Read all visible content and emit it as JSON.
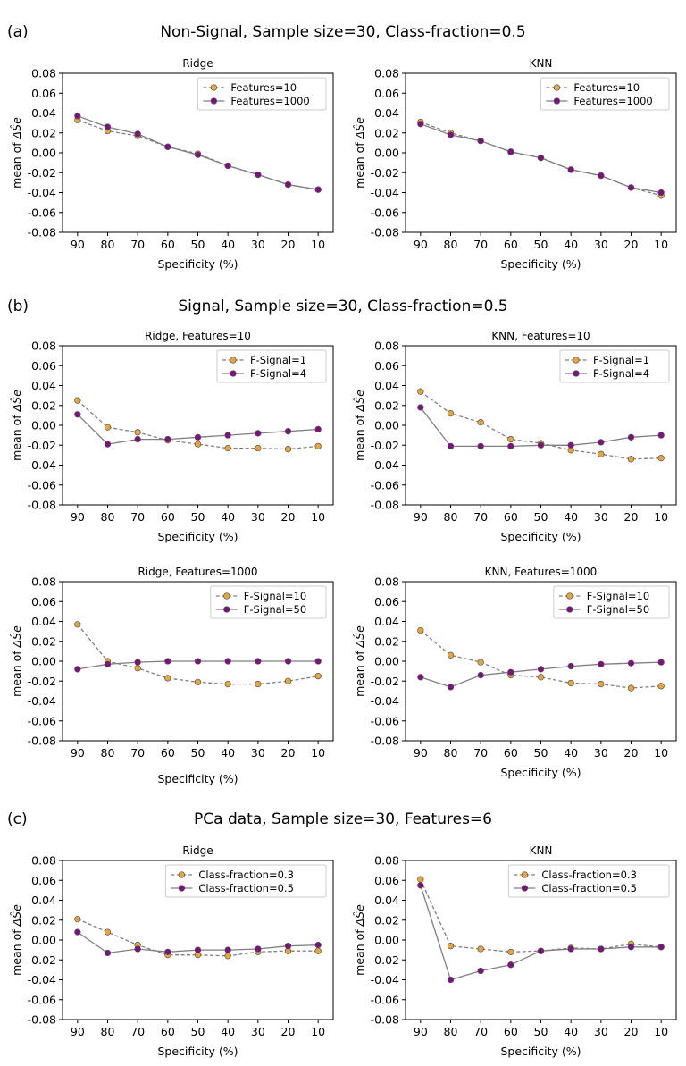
{
  "colors": {
    "series_a": "#e8a53a",
    "series_b": "#800f80",
    "line": "#7f7f7f",
    "frame": "#000000"
  },
  "sections": [
    {
      "label": "(a)",
      "title": "Non-Signal, Sample size=30, Class-fraction=0.5"
    },
    {
      "label": "(b)",
      "title": "Signal, Sample size=30, Class-fraction=0.5"
    },
    {
      "label": "(c)",
      "title": "PCa data, Sample size=30, Features=6"
    }
  ],
  "axes": {
    "xlabel": "Specificity (%)",
    "ylabel_prefix": "mean of ",
    "ylabel_math": "ΔŜe",
    "categories": [
      "90",
      "80",
      "70",
      "60",
      "50",
      "40",
      "30",
      "20",
      "10"
    ],
    "yticks": [
      "0.08",
      "0.06",
      "0.04",
      "0.02",
      "0.00",
      "-0.02",
      "-0.04",
      "-0.06",
      "-0.08"
    ],
    "ylim": [
      -0.08,
      0.08
    ]
  },
  "chart_data": [
    {
      "type": "line",
      "title": "Ridge",
      "xlabel": "Specificity (%)",
      "ylabel": "mean of ΔSe",
      "categories": [
        "90",
        "80",
        "70",
        "60",
        "50",
        "40",
        "30",
        "20",
        "10"
      ],
      "ylim": [
        -0.08,
        0.08
      ],
      "series": [
        {
          "name": "Features=10",
          "style": "dashed",
          "values": [
            0.033,
            0.022,
            0.017,
            0.006,
            -0.001,
            -0.013,
            -0.022,
            -0.032,
            -0.037
          ]
        },
        {
          "name": "Features=1000",
          "style": "solid",
          "values": [
            0.037,
            0.026,
            0.019,
            0.006,
            -0.002,
            -0.013,
            -0.022,
            -0.032,
            -0.037
          ]
        }
      ]
    },
    {
      "type": "line",
      "title": "KNN",
      "xlabel": "Specificity (%)",
      "ylabel": "mean of ΔSe",
      "categories": [
        "90",
        "80",
        "70",
        "60",
        "50",
        "40",
        "30",
        "20",
        "10"
      ],
      "ylim": [
        -0.08,
        0.08
      ],
      "series": [
        {
          "name": "Features=10",
          "style": "dashed",
          "values": [
            0.031,
            0.02,
            0.012,
            0.001,
            -0.005,
            -0.017,
            -0.023,
            -0.035,
            -0.043
          ]
        },
        {
          "name": "Features=1000",
          "style": "solid",
          "values": [
            0.029,
            0.018,
            0.012,
            0.001,
            -0.005,
            -0.017,
            -0.023,
            -0.035,
            -0.04
          ]
        }
      ]
    },
    {
      "type": "line",
      "title": "Ridge, Features=10",
      "xlabel": "Specificity (%)",
      "ylabel": "mean of ΔSe",
      "categories": [
        "90",
        "80",
        "70",
        "60",
        "50",
        "40",
        "30",
        "20",
        "10"
      ],
      "ylim": [
        -0.08,
        0.08
      ],
      "series": [
        {
          "name": "F-Signal=1",
          "style": "dashed",
          "values": [
            0.025,
            -0.002,
            -0.007,
            -0.015,
            -0.019,
            -0.023,
            -0.023,
            -0.024,
            -0.021
          ]
        },
        {
          "name": "F-Signal=4",
          "style": "solid",
          "values": [
            0.011,
            -0.019,
            -0.014,
            -0.014,
            -0.012,
            -0.01,
            -0.008,
            -0.006,
            -0.004
          ]
        }
      ]
    },
    {
      "type": "line",
      "title": "KNN, Features=10",
      "xlabel": "Specificity (%)",
      "ylabel": "mean of ΔSe",
      "categories": [
        "90",
        "80",
        "70",
        "60",
        "50",
        "40",
        "30",
        "20",
        "10"
      ],
      "ylim": [
        -0.08,
        0.08
      ],
      "series": [
        {
          "name": "F-Signal=1",
          "style": "dashed",
          "values": [
            0.034,
            0.012,
            0.003,
            -0.014,
            -0.018,
            -0.025,
            -0.029,
            -0.034,
            -0.033
          ]
        },
        {
          "name": "F-Signal=4",
          "style": "solid",
          "values": [
            0.018,
            -0.021,
            -0.021,
            -0.021,
            -0.02,
            -0.02,
            -0.017,
            -0.012,
            -0.01
          ]
        }
      ]
    },
    {
      "type": "line",
      "title": "Ridge, Features=1000",
      "xlabel": "Specificity (%)",
      "ylabel": "mean of ΔSe",
      "categories": [
        "90",
        "80",
        "70",
        "60",
        "50",
        "40",
        "30",
        "20",
        "10"
      ],
      "ylim": [
        -0.08,
        0.08
      ],
      "series": [
        {
          "name": "F-Signal=10",
          "style": "dashed",
          "values": [
            0.037,
            0.0,
            -0.007,
            -0.017,
            -0.021,
            -0.023,
            -0.023,
            -0.02,
            -0.015
          ]
        },
        {
          "name": "F-Signal=50",
          "style": "solid",
          "values": [
            -0.008,
            -0.003,
            -0.001,
            0.0,
            0.0,
            0.0,
            0.0,
            0.0,
            0.0
          ]
        }
      ]
    },
    {
      "type": "line",
      "title": "KNN, Features=1000",
      "xlabel": "Specificity (%)",
      "ylabel": "mean of ΔSe",
      "categories": [
        "90",
        "80",
        "70",
        "60",
        "50",
        "40",
        "30",
        "20",
        "10"
      ],
      "ylim": [
        -0.08,
        0.08
      ],
      "series": [
        {
          "name": "F-Signal=10",
          "style": "dashed",
          "values": [
            0.031,
            0.006,
            -0.001,
            -0.014,
            -0.016,
            -0.022,
            -0.023,
            -0.027,
            -0.025
          ]
        },
        {
          "name": "F-Signal=50",
          "style": "solid",
          "values": [
            -0.016,
            -0.026,
            -0.014,
            -0.011,
            -0.008,
            -0.005,
            -0.003,
            -0.002,
            -0.001
          ]
        }
      ]
    },
    {
      "type": "line",
      "title": "Ridge",
      "xlabel": "Specificity (%)",
      "ylabel": "mean of ΔSe",
      "categories": [
        "90",
        "80",
        "70",
        "60",
        "50",
        "40",
        "30",
        "20",
        "10"
      ],
      "ylim": [
        -0.08,
        0.08
      ],
      "series": [
        {
          "name": "Class-fraction=0.3",
          "style": "dashed",
          "values": [
            0.021,
            0.008,
            -0.005,
            -0.015,
            -0.015,
            -0.016,
            -0.012,
            -0.011,
            -0.011
          ]
        },
        {
          "name": "Class-fraction=0.5",
          "style": "solid",
          "values": [
            0.008,
            -0.013,
            -0.009,
            -0.012,
            -0.01,
            -0.01,
            -0.009,
            -0.006,
            -0.005
          ]
        }
      ]
    },
    {
      "type": "line",
      "title": "KNN",
      "xlabel": "Specificity (%)",
      "ylabel": "mean of ΔSe",
      "categories": [
        "90",
        "80",
        "70",
        "60",
        "50",
        "40",
        "30",
        "20",
        "10"
      ],
      "ylim": [
        -0.08,
        0.08
      ],
      "series": [
        {
          "name": "Class-fraction=0.3",
          "style": "dashed",
          "values": [
            0.061,
            -0.006,
            -0.009,
            -0.012,
            -0.011,
            -0.008,
            -0.009,
            -0.004,
            -0.007
          ]
        },
        {
          "name": "Class-fraction=0.5",
          "style": "solid",
          "values": [
            0.055,
            -0.04,
            -0.031,
            -0.025,
            -0.011,
            -0.009,
            -0.009,
            -0.007,
            -0.007
          ]
        }
      ]
    }
  ]
}
